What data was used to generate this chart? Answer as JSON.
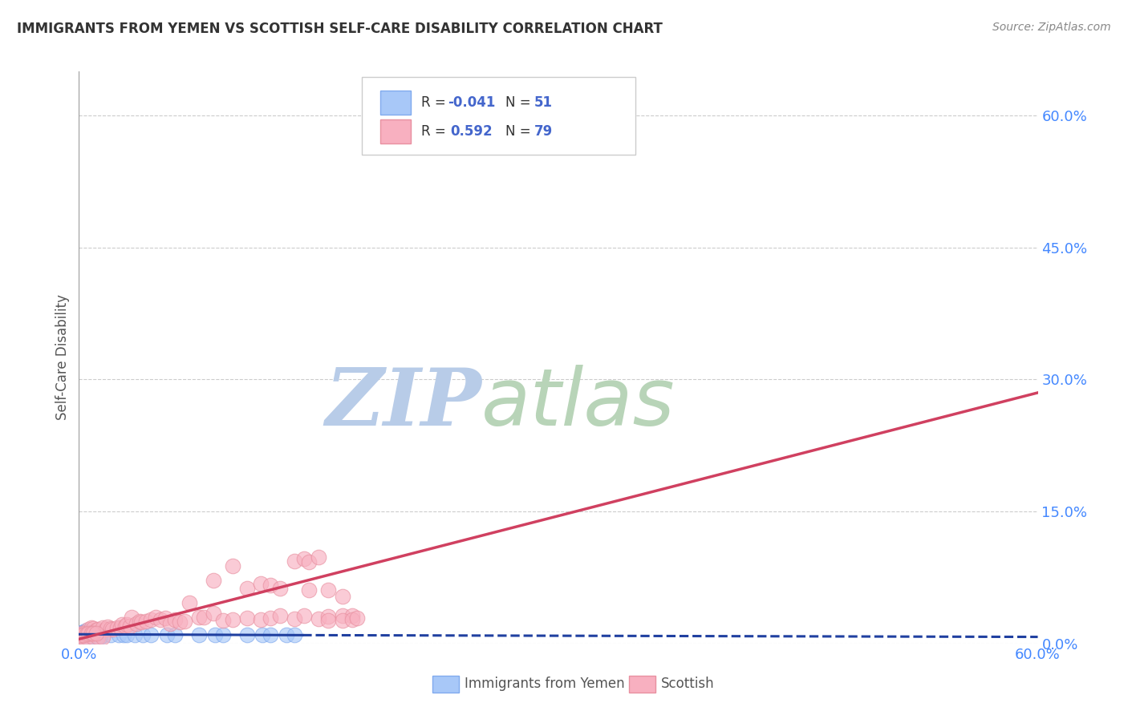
{
  "title": "IMMIGRANTS FROM YEMEN VS SCOTTISH SELF-CARE DISABILITY CORRELATION CHART",
  "source": "Source: ZipAtlas.com",
  "ylabel": "Self-Care Disability",
  "xlim": [
    0.0,
    0.6
  ],
  "ylim": [
    0.0,
    0.65
  ],
  "ytick_values": [
    0.0,
    0.15,
    0.3,
    0.45,
    0.6
  ],
  "ytick_labels": [
    "0.0%",
    "15.0%",
    "30.0%",
    "45.0%",
    "60.0%"
  ],
  "xtick_values": [
    0.0,
    0.6
  ],
  "xtick_labels": [
    "0.0%",
    "60.0%"
  ],
  "legend_r1_label": "R = ",
  "legend_r1_val": "-0.041",
  "legend_n1_label": "N = ",
  "legend_n1_val": "51",
  "legend_r2_label": "R =  ",
  "legend_r2_val": "0.592",
  "legend_n2_label": "N = ",
  "legend_n2_val": "79",
  "color_blue": "#a8c8f8",
  "color_blue_edge": "#80aaee",
  "color_pink": "#f8b0c0",
  "color_pink_edge": "#e890a0",
  "line_blue": "#2040a0",
  "line_pink": "#d04060",
  "watermark_zip_color": "#b8cce8",
  "watermark_atlas_color": "#b8d4b8",
  "text_color": "#333333",
  "source_color": "#888888",
  "axis_label_color": "#4488ff",
  "grid_color": "#cccccc",
  "legend_text_color": "#333333",
  "legend_val_color": "#4466cc",
  "blue_points": [
    [
      0.003,
      0.012
    ],
    [
      0.005,
      0.01
    ],
    [
      0.004,
      0.011
    ],
    [
      0.002,
      0.01
    ],
    [
      0.006,
      0.012
    ],
    [
      0.007,
      0.013
    ],
    [
      0.008,
      0.013
    ],
    [
      0.003,
      0.013
    ],
    [
      0.004,
      0.014
    ],
    [
      0.002,
      0.013
    ],
    [
      0.001,
      0.012
    ],
    [
      0.003,
      0.012
    ],
    [
      0.004,
      0.013
    ],
    [
      0.01,
      0.014
    ],
    [
      0.012,
      0.014
    ],
    [
      0.002,
      0.011
    ],
    [
      0.003,
      0.011
    ],
    [
      0.001,
      0.01
    ],
    [
      0.001,
      0.009
    ],
    [
      0.002,
      0.01
    ],
    [
      0.003,
      0.009
    ],
    [
      0.005,
      0.009
    ],
    [
      0.005,
      0.011
    ],
    [
      0.007,
      0.01
    ],
    [
      0.008,
      0.011
    ],
    [
      0.003,
      0.008
    ],
    [
      0.01,
      0.01
    ],
    [
      0.015,
      0.009
    ],
    [
      0.02,
      0.01
    ],
    [
      0.025,
      0.01
    ],
    [
      0.028,
      0.01
    ],
    [
      0.03,
      0.01
    ],
    [
      0.035,
      0.01
    ],
    [
      0.04,
      0.01
    ],
    [
      0.045,
      0.01
    ],
    [
      0.055,
      0.01
    ],
    [
      0.06,
      0.01
    ],
    [
      0.075,
      0.01
    ],
    [
      0.085,
      0.01
    ],
    [
      0.09,
      0.01
    ],
    [
      0.105,
      0.01
    ],
    [
      0.115,
      0.01
    ],
    [
      0.12,
      0.01
    ],
    [
      0.13,
      0.01
    ],
    [
      0.135,
      0.01
    ],
    [
      0.001,
      0.007
    ],
    [
      0.004,
      0.007
    ],
    [
      0.006,
      0.007
    ],
    [
      0.009,
      0.007
    ],
    [
      0.011,
      0.007
    ],
    [
      0.013,
      0.007
    ]
  ],
  "pink_points": [
    [
      0.003,
      0.012
    ],
    [
      0.005,
      0.01
    ],
    [
      0.002,
      0.009
    ],
    [
      0.006,
      0.016
    ],
    [
      0.008,
      0.018
    ],
    [
      0.009,
      0.017
    ],
    [
      0.011,
      0.015
    ],
    [
      0.012,
      0.016
    ],
    [
      0.015,
      0.018
    ],
    [
      0.017,
      0.016
    ],
    [
      0.018,
      0.019
    ],
    [
      0.02,
      0.017
    ],
    [
      0.021,
      0.016
    ],
    [
      0.024,
      0.018
    ],
    [
      0.026,
      0.018
    ],
    [
      0.027,
      0.022
    ],
    [
      0.029,
      0.02
    ],
    [
      0.03,
      0.022
    ],
    [
      0.032,
      0.02
    ],
    [
      0.033,
      0.03
    ],
    [
      0.036,
      0.023
    ],
    [
      0.038,
      0.025
    ],
    [
      0.039,
      0.024
    ],
    [
      0.042,
      0.025
    ],
    [
      0.045,
      0.027
    ],
    [
      0.048,
      0.03
    ],
    [
      0.051,
      0.027
    ],
    [
      0.054,
      0.029
    ],
    [
      0.057,
      0.023
    ],
    [
      0.06,
      0.027
    ],
    [
      0.063,
      0.024
    ],
    [
      0.066,
      0.025
    ],
    [
      0.069,
      0.046
    ],
    [
      0.075,
      0.03
    ],
    [
      0.078,
      0.03
    ],
    [
      0.084,
      0.034
    ],
    [
      0.09,
      0.026
    ],
    [
      0.096,
      0.027
    ],
    [
      0.105,
      0.029
    ],
    [
      0.114,
      0.027
    ],
    [
      0.12,
      0.029
    ],
    [
      0.126,
      0.032
    ],
    [
      0.135,
      0.028
    ],
    [
      0.141,
      0.032
    ],
    [
      0.15,
      0.028
    ],
    [
      0.156,
      0.031
    ],
    [
      0.165,
      0.032
    ],
    [
      0.171,
      0.032
    ],
    [
      0.001,
      0.008
    ],
    [
      0.003,
      0.007
    ],
    [
      0.005,
      0.007
    ],
    [
      0.009,
      0.007
    ],
    [
      0.012,
      0.007
    ],
    [
      0.015,
      0.007
    ],
    [
      0.084,
      0.072
    ],
    [
      0.002,
      0.012
    ],
    [
      0.105,
      0.063
    ],
    [
      0.114,
      0.068
    ],
    [
      0.12,
      0.066
    ],
    [
      0.126,
      0.063
    ],
    [
      0.144,
      0.061
    ],
    [
      0.156,
      0.061
    ],
    [
      0.165,
      0.054
    ],
    [
      0.096,
      0.088
    ],
    [
      0.135,
      0.094
    ],
    [
      0.141,
      0.096
    ],
    [
      0.144,
      0.093
    ],
    [
      0.15,
      0.098
    ],
    [
      0.156,
      0.026
    ],
    [
      0.165,
      0.026
    ],
    [
      0.171,
      0.027
    ],
    [
      0.174,
      0.029
    ],
    [
      0.002,
      0.01
    ],
    [
      0.003,
      0.01
    ],
    [
      0.005,
      0.011
    ],
    [
      0.006,
      0.012
    ],
    [
      0.008,
      0.012
    ],
    [
      0.009,
      0.012
    ],
    [
      0.011,
      0.012
    ]
  ],
  "blue_line_solid": {
    "x0": 0.0,
    "x1": 0.14,
    "y0": 0.0105,
    "y1": 0.0095
  },
  "blue_line_dashed": {
    "x0": 0.14,
    "x1": 0.6,
    "y0": 0.0095,
    "y1": 0.0075
  },
  "pink_line": {
    "x0": 0.0,
    "x1": 0.6,
    "y0": 0.005,
    "y1": 0.285
  },
  "background_color": "#ffffff"
}
